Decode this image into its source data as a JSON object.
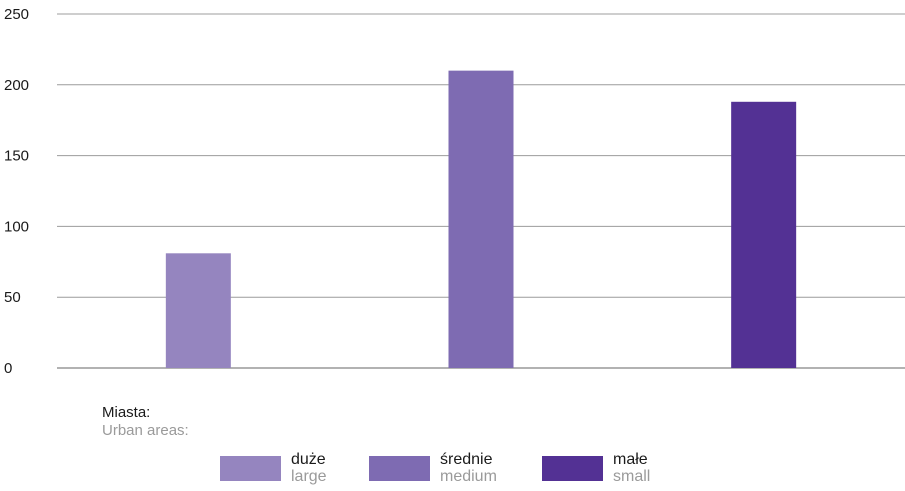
{
  "chart_data": {
    "type": "bar",
    "categories": [
      "duże",
      "średnie",
      "małe"
    ],
    "values": [
      81,
      210,
      188
    ],
    "colors": [
      "#9585bf",
      "#7e6bb2",
      "#533194"
    ],
    "ylim": [
      0,
      250
    ],
    "yticks": [
      "0",
      "50",
      "100",
      "150",
      "200",
      "250"
    ],
    "grid": true,
    "legend": {
      "title": "Miasta:",
      "subtitle": "Urban areas:",
      "items": [
        {
          "label": "duże",
          "sublabel": "large",
          "color": "#9585bf"
        },
        {
          "label": "średnie",
          "sublabel": "medium",
          "color": "#7e6bb2"
        },
        {
          "label": "małe",
          "sublabel": "small",
          "color": "#533194"
        }
      ],
      "placement": "bottom"
    }
  }
}
